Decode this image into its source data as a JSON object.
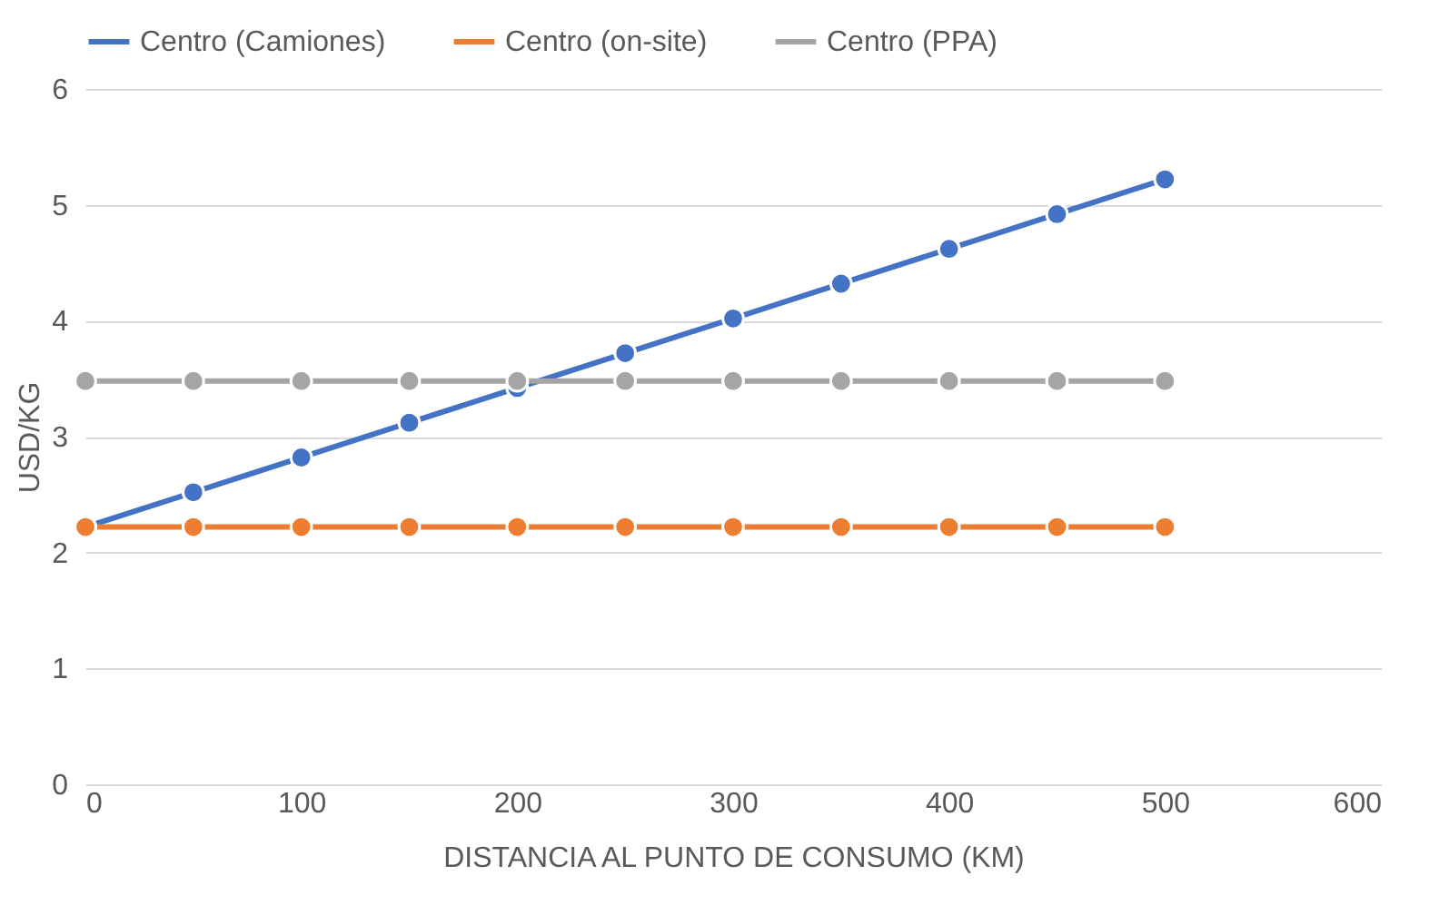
{
  "chart_data": {
    "type": "line",
    "xlabel": "DISTANCIA AL PUNTO DE CONSUMO (KM)",
    "ylabel": "USD/KG",
    "x": [
      0,
      50,
      100,
      150,
      200,
      250,
      300,
      350,
      400,
      450,
      500
    ],
    "series": [
      {
        "name": "Centro (Camiones)",
        "color": "#4472c4",
        "values": [
          2.22,
          2.52,
          2.82,
          3.12,
          3.42,
          3.72,
          4.02,
          4.32,
          4.62,
          4.92,
          5.22
        ]
      },
      {
        "name": "Centro (on-site)",
        "color": "#ed7d31",
        "values": [
          2.22,
          2.22,
          2.22,
          2.22,
          2.22,
          2.22,
          2.22,
          2.22,
          2.22,
          2.22,
          2.22
        ]
      },
      {
        "name": "Centro (PPA)",
        "color": "#a5a5a5",
        "values": [
          3.48,
          3.48,
          3.48,
          3.48,
          3.48,
          3.48,
          3.48,
          3.48,
          3.48,
          3.48,
          3.48
        ]
      }
    ],
    "xlim": [
      0,
      600
    ],
    "xticks": [
      0,
      100,
      200,
      300,
      400,
      500,
      600
    ],
    "ylim": [
      0,
      6
    ],
    "yticks": [
      0,
      1,
      2,
      3,
      4,
      5,
      6
    ],
    "grid": "y",
    "legend": "top",
    "marker": "circle",
    "line_style": "solid"
  }
}
